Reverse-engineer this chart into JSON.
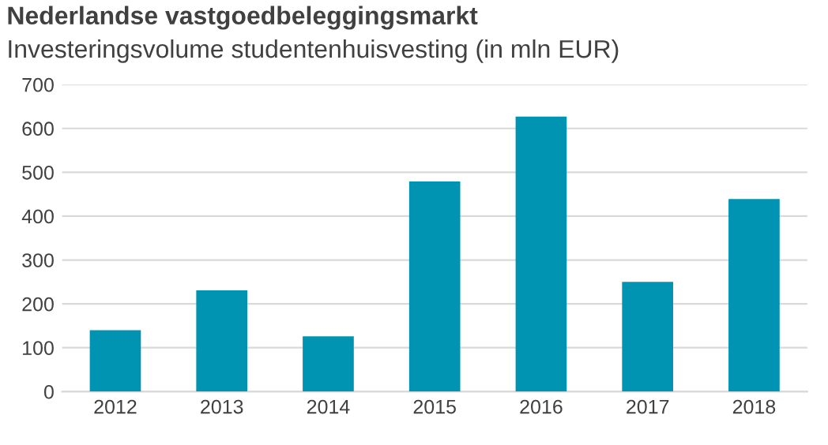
{
  "chart_data": {
    "type": "bar",
    "title": "Nederlandse vastgoedbeleggingsmarkt",
    "subtitle": "Investeringsvolume studentenhuisvesting (in mln EUR)",
    "categories": [
      "2012",
      "2013",
      "2014",
      "2015",
      "2016",
      "2017",
      "2018"
    ],
    "values": [
      140,
      231,
      126,
      479,
      627,
      250,
      439
    ],
    "color": "#0093b2",
    "ylim": [
      0,
      700
    ],
    "yticks": [
      0,
      100,
      200,
      300,
      400,
      500,
      600,
      700
    ],
    "grid": "y"
  }
}
